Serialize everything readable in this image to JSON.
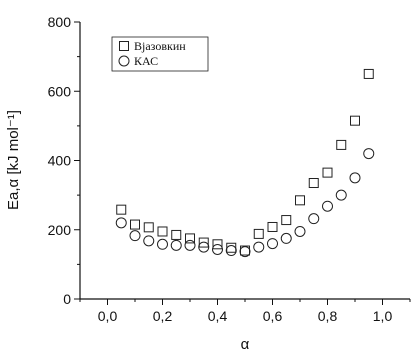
{
  "chart_data": {
    "type": "scatter",
    "title": "",
    "xlabel": "α",
    "ylabel": "Ea,α [kJ mol⁻¹]",
    "xlim": [
      -0.1,
      1.1
    ],
    "ylim": [
      0,
      800
    ],
    "x_ticks": [
      0.0,
      0.2,
      0.4,
      0.6,
      0.8,
      1.0
    ],
    "x_tick_labels": [
      "0,0",
      "0,2",
      "0,4",
      "0,6",
      "0,8",
      "1,0"
    ],
    "y_ticks": [
      0,
      200,
      400,
      600,
      800
    ],
    "y_tick_labels": [
      "0",
      "200",
      "400",
      "600",
      "800"
    ],
    "grid": false,
    "legend_position": "top-left",
    "series": [
      {
        "name": "Вјазовкин",
        "marker": "square",
        "x": [
          0.05,
          0.1,
          0.15,
          0.2,
          0.25,
          0.3,
          0.35,
          0.4,
          0.45,
          0.5,
          0.55,
          0.6,
          0.65,
          0.7,
          0.75,
          0.8,
          0.85,
          0.9,
          0.95
        ],
        "y": [
          258,
          215,
          207,
          195,
          185,
          175,
          163,
          158,
          148,
          140,
          188,
          208,
          228,
          285,
          335,
          365,
          445,
          515,
          650
        ]
      },
      {
        "name": "КАС",
        "marker": "circle",
        "x": [
          0.05,
          0.1,
          0.15,
          0.2,
          0.25,
          0.3,
          0.35,
          0.4,
          0.45,
          0.5,
          0.55,
          0.6,
          0.65,
          0.7,
          0.75,
          0.8,
          0.85,
          0.9,
          0.95
        ],
        "y": [
          220,
          183,
          168,
          158,
          155,
          155,
          150,
          143,
          140,
          137,
          150,
          160,
          175,
          195,
          232,
          268,
          300,
          350,
          420
        ]
      }
    ]
  }
}
